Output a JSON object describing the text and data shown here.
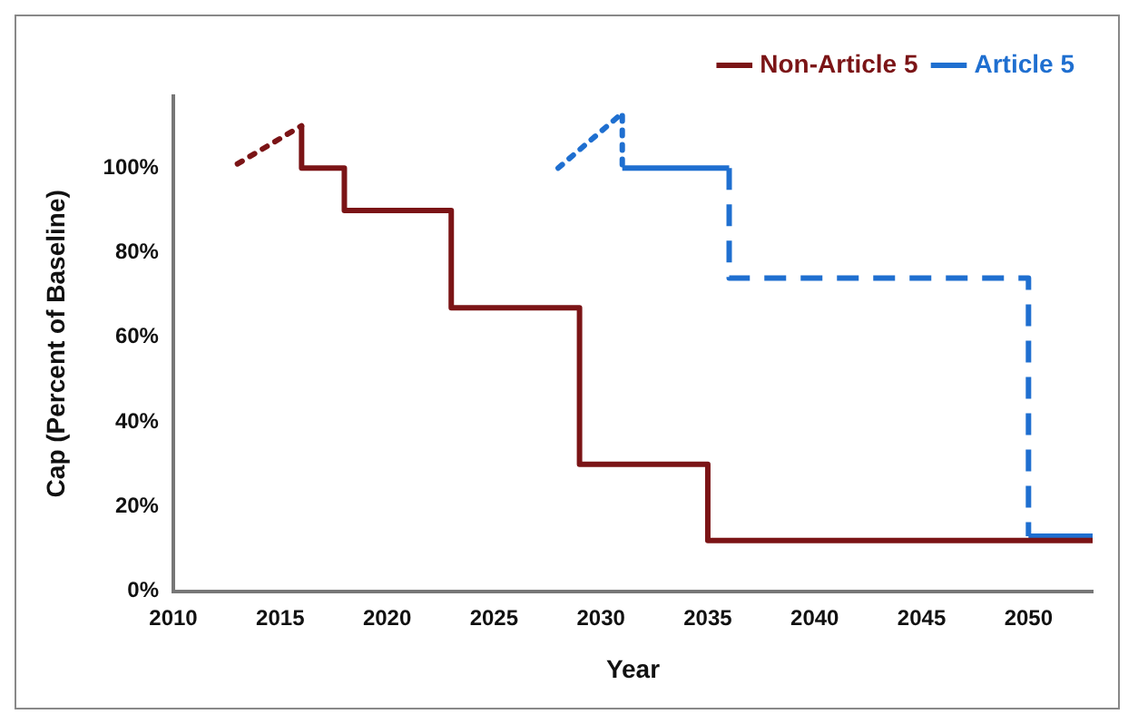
{
  "chart_data": {
    "type": "step",
    "xlabel": "Year",
    "ylabel": "Cap (Percent of Baseline)",
    "xlim": [
      2010,
      2053
    ],
    "xticks": [
      2010,
      2015,
      2020,
      2025,
      2030,
      2035,
      2040,
      2045,
      2050
    ],
    "ylim": [
      0,
      117
    ],
    "yticks": [
      {
        "value": 0,
        "label": "0%"
      },
      {
        "value": 20,
        "label": "20%"
      },
      {
        "value": 40,
        "label": "40%"
      },
      {
        "value": 60,
        "label": "60%"
      },
      {
        "value": 80,
        "label": "80%"
      },
      {
        "value": 100,
        "label": "100%"
      }
    ],
    "grid": false,
    "legend": "top right",
    "marker": "none",
    "series": [
      {
        "name": "Non-Article 5",
        "color": "#7b1416",
        "line_style": "solid",
        "x": [
          2016,
          2016,
          2018,
          2023,
          2029,
          2035,
          2053
        ],
        "values": [
          110,
          100,
          90,
          67,
          30,
          12,
          12
        ]
      },
      {
        "color": "#7b1416",
        "type": "line",
        "line_style": "dotted",
        "x": [
          2013,
          2016
        ],
        "values": [
          101,
          110
        ]
      },
      {
        "name": "Article 5",
        "color": "#1f6fd0",
        "line_style": "solid",
        "x": [
          2031,
          2036
        ],
        "values": [
          100,
          100
        ]
      },
      {
        "color": "#1f6fd0",
        "type": "line",
        "line_style": "dotted",
        "x": [
          2028,
          2031,
          2031
        ],
        "values": [
          100,
          113,
          100
        ]
      },
      {
        "color": "#1f6fd0",
        "line_style": "dashed",
        "x": [
          2036,
          2036,
          2050,
          2050
        ],
        "values": [
          100,
          74,
          74,
          13
        ]
      },
      {
        "color": "#1f6fd0",
        "line_style": "solid",
        "x": [
          2050,
          2053
        ],
        "values": [
          13,
          13
        ]
      }
    ]
  }
}
